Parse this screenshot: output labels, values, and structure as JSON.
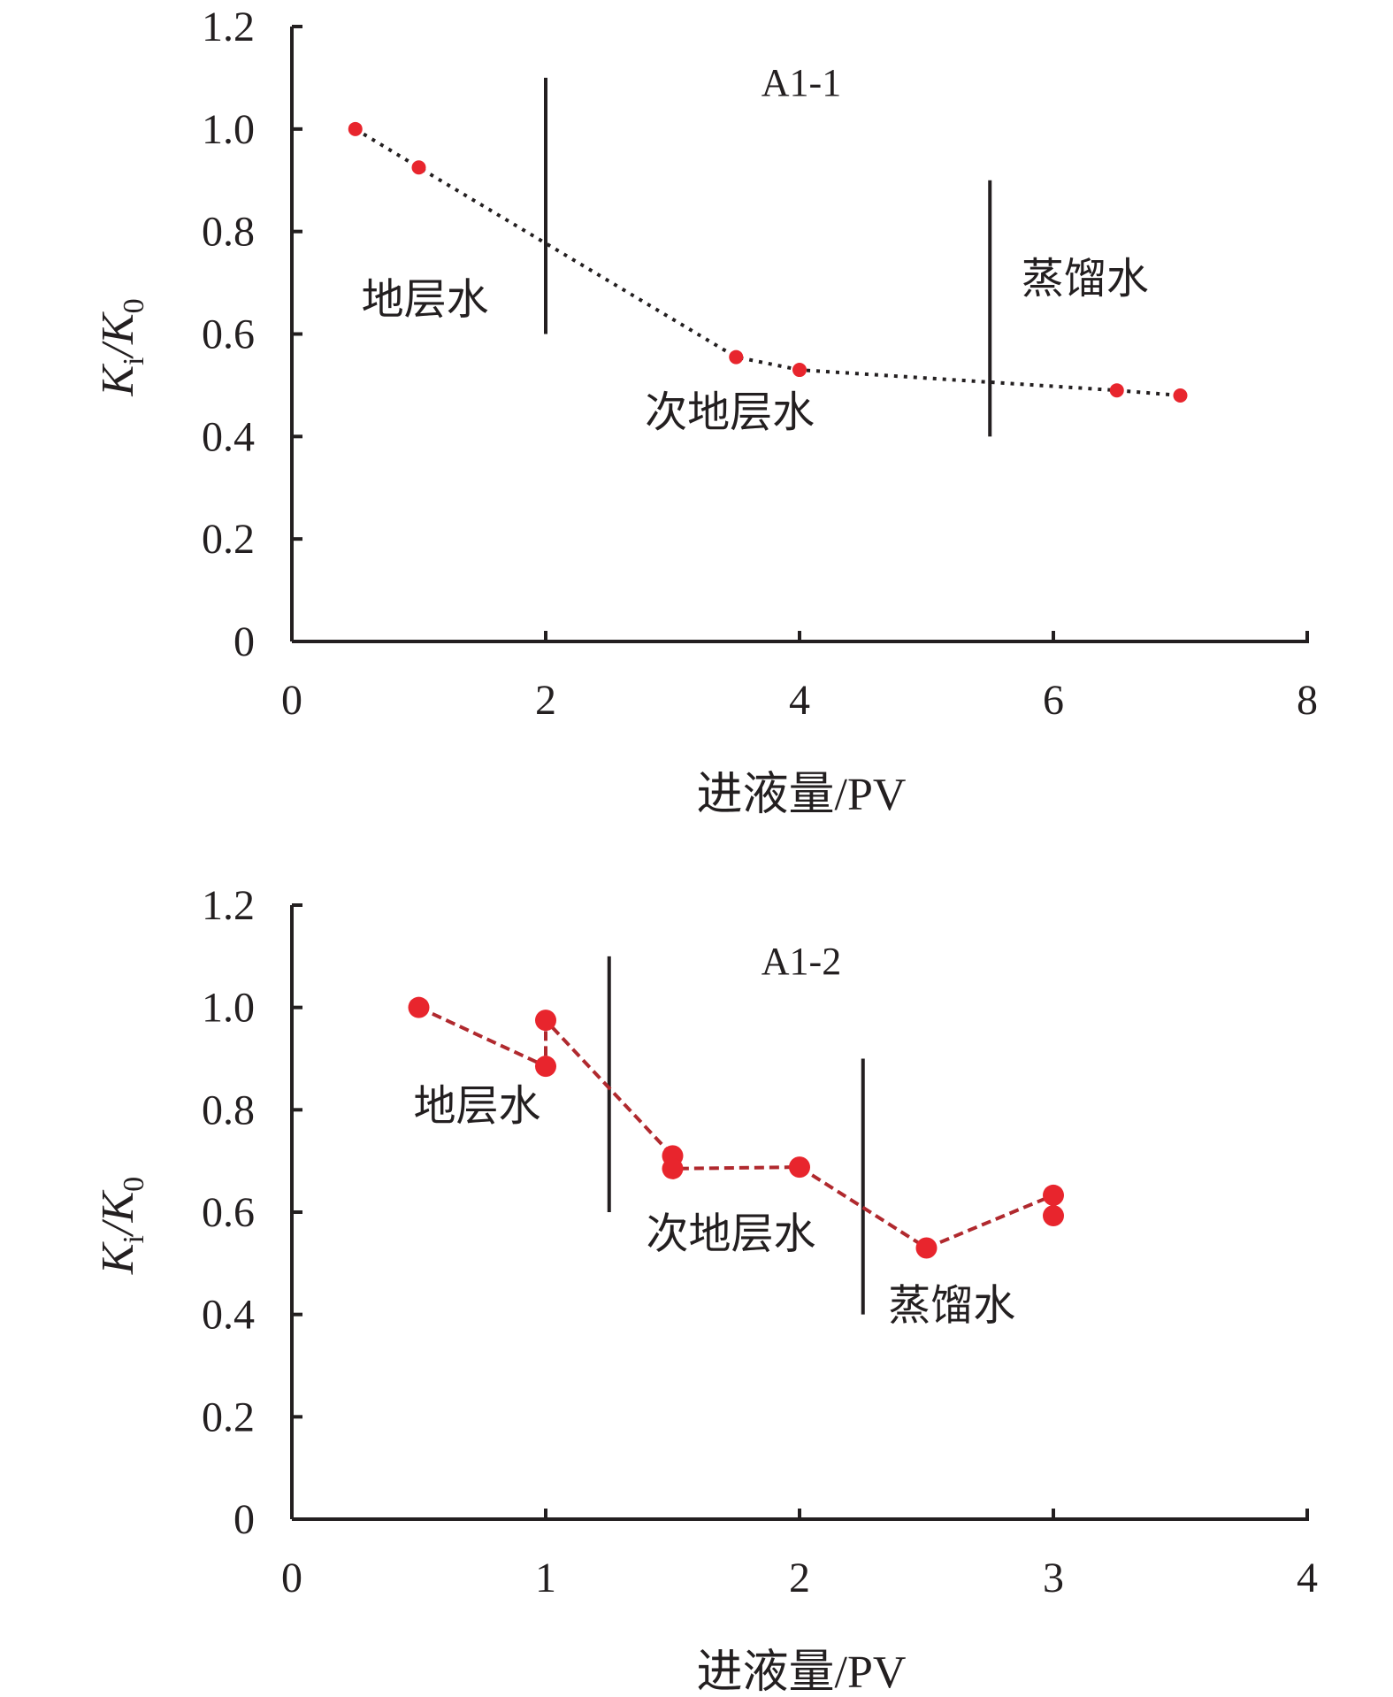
{
  "colors": {
    "axis": "#231f20",
    "marker": "#e8252d",
    "line_panel_1": "#231f20",
    "line_panel_2": "#b0292e"
  },
  "chart_data": [
    {
      "type": "line",
      "title": "A1-1",
      "xlabel": "进液量/PV",
      "ylabel": "Ki/K0",
      "ylabel_parts": {
        "main": "K",
        "sub1": "i",
        "sep": "/K",
        "sub2": "0"
      },
      "xlim": [
        0,
        8
      ],
      "ylim": [
        0,
        1.2
      ],
      "xticks": [
        0,
        2,
        4,
        6,
        8
      ],
      "yticks": [
        0,
        0.2,
        0.4,
        0.6,
        0.8,
        1.0,
        1.2
      ],
      "yticklabels": [
        "0",
        "0.2",
        "0.4",
        "0.6",
        "0.8",
        "1.0",
        "1.2"
      ],
      "xticklabels": [
        "0",
        "2",
        "4",
        "6",
        "8"
      ],
      "grid": false,
      "line_style": "dotted",
      "series": [
        {
          "x": [
            0.5,
            1.0,
            3.5,
            4.0,
            6.5,
            7.0
          ],
          "y": [
            1.0,
            0.925,
            0.555,
            0.53,
            0.49,
            0.48
          ]
        }
      ],
      "stage_dividers": [
        {
          "x": 2.0,
          "y_range": [
            0.6,
            1.1
          ]
        },
        {
          "x": 5.5,
          "y_range": [
            0.4,
            0.9
          ]
        }
      ],
      "regions": [
        {
          "label": "地层水",
          "x": 1.05,
          "y": 0.64
        },
        {
          "label": "次地层水",
          "x": 3.45,
          "y": 0.42
        },
        {
          "label": "蒸馏水",
          "x": 6.25,
          "y": 0.68
        }
      ]
    },
    {
      "type": "line",
      "title": "A1-2",
      "xlabel": "进液量/PV",
      "ylabel": "Ki/K0",
      "ylabel_parts": {
        "main": "K",
        "sub1": "i",
        "sep": "/K",
        "sub2": "0"
      },
      "xlim": [
        0,
        4
      ],
      "ylim": [
        0,
        1.2
      ],
      "xticks": [
        0,
        1,
        2,
        3,
        4
      ],
      "yticks": [
        0,
        0.2,
        0.4,
        0.6,
        0.8,
        1.0,
        1.2
      ],
      "yticklabels": [
        "0",
        "0.2",
        "0.4",
        "0.6",
        "0.8",
        "1.0",
        "1.2"
      ],
      "xticklabels": [
        "0",
        "1",
        "2",
        "3",
        "4"
      ],
      "grid": false,
      "line_style": "dashed",
      "series": [
        {
          "x": [
            0.5,
            1.0,
            1.0,
            1.5,
            1.5,
            2.0,
            2.5,
            3.0,
            3.0
          ],
          "y": [
            1.0,
            0.885,
            0.975,
            0.71,
            0.685,
            0.688,
            0.53,
            0.633,
            0.593
          ]
        }
      ],
      "stage_dividers": [
        {
          "x": 1.25,
          "y_range": [
            0.6,
            1.1
          ]
        },
        {
          "x": 2.25,
          "y_range": [
            0.4,
            0.9
          ]
        }
      ],
      "regions": [
        {
          "label": "地层水",
          "x": 0.73,
          "y": 0.78
        },
        {
          "label": "次地层水",
          "x": 1.73,
          "y": 0.53
        },
        {
          "label": "蒸馏水",
          "x": 2.6,
          "y": 0.39
        }
      ]
    }
  ]
}
